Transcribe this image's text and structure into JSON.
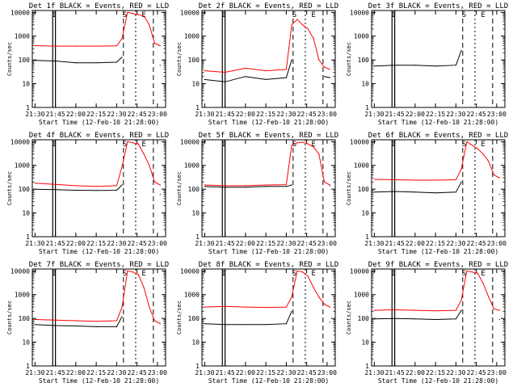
{
  "figure": {
    "xlabel": "Start Time (12-Feb-10 21:28:00)",
    "ylabel": "Counts/sec",
    "x_ticks": [
      "21:30",
      "21:45",
      "22:00",
      "22:15",
      "22:30",
      "22:45",
      "23:00"
    ],
    "y_ticks": [
      "1",
      "10",
      "100",
      "1000",
      "10000"
    ],
    "markers": [
      "I",
      "S",
      "E"
    ]
  },
  "chart_data": [
    {
      "type": "line",
      "title": "Det 1f BLACK = Events, RED = LLD",
      "xlabel": "Start Time (12-Feb-10 21:28:00)",
      "ylabel": "Counts/sec",
      "yscale": "log",
      "ylim": [
        1,
        12000
      ],
      "xlim": [
        "21:28",
        "23:06"
      ],
      "x": [
        "21:30",
        "21:45",
        "22:00",
        "22:15",
        "22:30",
        "22:34",
        "22:38",
        "22:42",
        "22:46",
        "22:50",
        "22:54",
        "22:58",
        "23:02"
      ],
      "series": [
        {
          "name": "BLACK = Events",
          "color": "#000000",
          "values": [
            95,
            90,
            75,
            75,
            80,
            130,
            null,
            null,
            null,
            null,
            null,
            null,
            60
          ]
        },
        {
          "name": "RED = LLD",
          "color": "#ff0000",
          "values": [
            400,
            380,
            380,
            380,
            390,
            800,
            10000,
            9000,
            8000,
            7000,
            3000,
            500,
            400
          ]
        }
      ]
    },
    {
      "type": "line",
      "title": "Det 2f BLACK = Events, RED = LLD",
      "xlabel": "Start Time (12-Feb-10 21:28:00)",
      "ylabel": "Counts/sec",
      "yscale": "log",
      "ylim": [
        1,
        12000
      ],
      "xlim": [
        "21:28",
        "23:06"
      ],
      "x": [
        "21:30",
        "21:45",
        "22:00",
        "22:15",
        "22:30",
        "22:34",
        "22:38",
        "22:42",
        "22:46",
        "22:50",
        "22:54",
        "22:58",
        "23:02"
      ],
      "series": [
        {
          "name": "BLACK = Events",
          "color": "#000000",
          "values": [
            15,
            12,
            20,
            15,
            18,
            100,
            null,
            null,
            null,
            null,
            null,
            20,
            18
          ]
        },
        {
          "name": "RED = LLD",
          "color": "#ff0000",
          "values": [
            35,
            30,
            45,
            35,
            40,
            3000,
            5000,
            3000,
            2000,
            800,
            100,
            50,
            40
          ]
        }
      ]
    },
    {
      "type": "line",
      "title": "Det 3f BLACK = Events, RED = LLD",
      "xlabel": "Start Time (12-Feb-10 21:28:00)",
      "ylabel": "Counts/sec",
      "yscale": "log",
      "ylim": [
        1,
        12000
      ],
      "xlim": [
        "21:28",
        "23:06"
      ],
      "x": [
        "21:30",
        "21:45",
        "22:00",
        "22:15",
        "22:30",
        "22:34",
        "22:38",
        "22:42",
        "22:46",
        "22:50",
        "22:54",
        "22:58",
        "23:02"
      ],
      "series": [
        {
          "name": "BLACK = Events",
          "color": "#000000",
          "values": [
            55,
            60,
            60,
            55,
            60,
            250,
            null,
            null,
            null,
            null,
            null,
            null,
            null
          ]
        }
      ]
    },
    {
      "type": "line",
      "title": "Det 4f BLACK = Events, RED = LLD",
      "xlabel": "Start Time (12-Feb-10 21:28:00)",
      "ylabel": "Counts/sec",
      "yscale": "log",
      "ylim": [
        1,
        12000
      ],
      "xlim": [
        "21:28",
        "23:06"
      ],
      "x": [
        "21:30",
        "21:45",
        "22:00",
        "22:15",
        "22:30",
        "22:34",
        "22:38",
        "22:42",
        "22:46",
        "22:50",
        "22:54",
        "22:58",
        "23:02"
      ],
      "series": [
        {
          "name": "BLACK = Events",
          "color": "#000000",
          "values": [
            100,
            95,
            90,
            88,
            90,
            150,
            null,
            null,
            null,
            null,
            null,
            null,
            60
          ]
        },
        {
          "name": "RED = LLD",
          "color": "#ff0000",
          "values": [
            180,
            160,
            140,
            130,
            140,
            900,
            10000,
            9000,
            8000,
            3000,
            1000,
            200,
            150
          ]
        }
      ]
    },
    {
      "type": "line",
      "title": "Det 5f BLACK = Events, RED = LLD",
      "xlabel": "Start Time (12-Feb-10 21:28:00)",
      "ylabel": "Counts/sec",
      "yscale": "log",
      "ylim": [
        1,
        12000
      ],
      "xlim": [
        "21:28",
        "23:06"
      ],
      "x": [
        "21:30",
        "21:45",
        "22:00",
        "22:15",
        "22:30",
        "22:34",
        "22:38",
        "22:42",
        "22:46",
        "22:50",
        "22:54",
        "22:58",
        "23:02"
      ],
      "series": [
        {
          "name": "BLACK = Events",
          "color": "#000000",
          "values": [
            130,
            120,
            120,
            130,
            130,
            150,
            null,
            null,
            null,
            null,
            null,
            null,
            140
          ]
        },
        {
          "name": "RED = LLD",
          "color": "#ff0000",
          "values": [
            150,
            140,
            140,
            150,
            155,
            7000,
            9000,
            9500,
            8000,
            6000,
            3000,
            200,
            150
          ]
        }
      ]
    },
    {
      "type": "line",
      "title": "Det 6f BLACK = Events, RED = LLD",
      "xlabel": "Start Time (12-Feb-10 21:28:00)",
      "ylabel": "Counts/sec",
      "yscale": "log",
      "ylim": [
        1,
        12000
      ],
      "xlim": [
        "21:28",
        "23:06"
      ],
      "x": [
        "21:30",
        "21:45",
        "22:00",
        "22:15",
        "22:30",
        "22:34",
        "22:38",
        "22:42",
        "22:46",
        "22:50",
        "22:54",
        "22:58",
        "23:02"
      ],
      "series": [
        {
          "name": "BLACK = Events",
          "color": "#000000",
          "values": [
            75,
            80,
            75,
            70,
            75,
            200,
            null,
            null,
            null,
            null,
            null,
            null,
            60
          ]
        },
        {
          "name": "RED = LLD",
          "color": "#ff0000",
          "values": [
            260,
            250,
            240,
            240,
            250,
            700,
            10000,
            7000,
            5000,
            3000,
            1500,
            400,
            300
          ]
        }
      ]
    },
    {
      "type": "line",
      "title": "Det 7f BLACK = Events, RED = LLD",
      "xlabel": "Start Time (12-Feb-10 21:28:00)",
      "ylabel": "Counts/sec",
      "yscale": "log",
      "ylim": [
        1,
        12000
      ],
      "xlim": [
        "21:28",
        "23:06"
      ],
      "x": [
        "21:30",
        "21:45",
        "22:00",
        "22:15",
        "22:30",
        "22:34",
        "22:38",
        "22:42",
        "22:46",
        "22:50",
        "22:54",
        "22:58",
        "23:02"
      ],
      "series": [
        {
          "name": "BLACK = Events",
          "color": "#000000",
          "values": [
            55,
            50,
            48,
            45,
            45,
            120,
            null,
            null,
            null,
            null,
            null,
            null,
            60
          ]
        },
        {
          "name": "RED = LLD",
          "color": "#ff0000",
          "values": [
            90,
            85,
            80,
            75,
            80,
            300,
            10000,
            9000,
            7000,
            2000,
            300,
            80,
            60
          ]
        }
      ]
    },
    {
      "type": "line",
      "title": "Det 8f BLACK = Events, RED = LLD",
      "xlabel": "Start Time (12-Feb-10 21:28:00)",
      "ylabel": "Counts/sec",
      "yscale": "log",
      "ylim": [
        1,
        12000
      ],
      "xlim": [
        "21:28",
        "23:06"
      ],
      "x": [
        "21:30",
        "21:45",
        "22:00",
        "22:15",
        "22:30",
        "22:34",
        "22:38",
        "22:42",
        "22:46",
        "22:50",
        "22:54",
        "22:58",
        "23:02"
      ],
      "series": [
        {
          "name": "BLACK = Events",
          "color": "#000000",
          "values": [
            60,
            55,
            55,
            55,
            60,
            200,
            null,
            null,
            null,
            null,
            null,
            null,
            70
          ]
        },
        {
          "name": "RED = LLD",
          "color": "#ff0000",
          "values": [
            300,
            320,
            300,
            290,
            300,
            800,
            10000,
            9000,
            6000,
            2000,
            800,
            400,
            300
          ]
        }
      ]
    },
    {
      "type": "line",
      "title": "Det 9f BLACK = Events, RED = LLD",
      "xlabel": "Start Time (12-Feb-10 21:28:00)",
      "ylabel": "Counts/sec",
      "yscale": "log",
      "ylim": [
        1,
        12000
      ],
      "xlim": [
        "21:28",
        "23:06"
      ],
      "x": [
        "21:30",
        "21:45",
        "22:00",
        "22:15",
        "22:30",
        "22:34",
        "22:38",
        "22:42",
        "22:46",
        "22:50",
        "22:54",
        "22:58",
        "23:02"
      ],
      "series": [
        {
          "name": "BLACK = Events",
          "color": "#000000",
          "values": [
            95,
            100,
            95,
            90,
            95,
            220,
            null,
            null,
            null,
            null,
            null,
            null,
            90
          ]
        },
        {
          "name": "RED = LLD",
          "color": "#ff0000",
          "values": [
            220,
            230,
            220,
            210,
            220,
            600,
            10000,
            9000,
            8000,
            3000,
            800,
            250,
            220
          ]
        }
      ]
    }
  ]
}
